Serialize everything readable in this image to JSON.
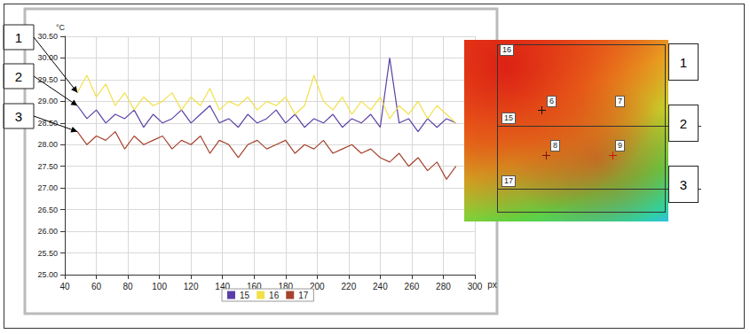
{
  "chart_data": {
    "type": "line",
    "x_label": "px",
    "y_label": "°C",
    "x": [
      48,
      54,
      60,
      66,
      72,
      78,
      84,
      90,
      96,
      102,
      108,
      114,
      120,
      126,
      132,
      138,
      144,
      150,
      156,
      162,
      168,
      174,
      180,
      186,
      192,
      198,
      204,
      210,
      216,
      222,
      228,
      234,
      240,
      246,
      252,
      258,
      264,
      270,
      276,
      282,
      288
    ],
    "series": [
      {
        "name": "15",
        "color": "#5b3fa6",
        "values": [
          28.9,
          28.6,
          28.8,
          28.5,
          28.7,
          28.6,
          28.8,
          28.4,
          28.7,
          28.5,
          28.6,
          28.8,
          28.5,
          28.7,
          28.9,
          28.5,
          28.6,
          28.4,
          28.7,
          28.5,
          28.6,
          28.8,
          28.5,
          28.7,
          28.4,
          28.6,
          28.5,
          28.7,
          28.4,
          28.6,
          28.5,
          28.7,
          28.4,
          30.0,
          28.5,
          28.6,
          28.3,
          28.6,
          28.4,
          28.6,
          28.5
        ]
      },
      {
        "name": "16",
        "color": "#f2e04a",
        "values": [
          29.2,
          29.6,
          29.1,
          29.4,
          28.9,
          29.2,
          28.8,
          29.1,
          28.9,
          29.0,
          29.2,
          28.8,
          29.1,
          28.9,
          29.3,
          28.8,
          29.0,
          28.9,
          29.1,
          28.8,
          29.0,
          28.9,
          29.1,
          28.7,
          28.9,
          29.6,
          29.0,
          28.8,
          29.1,
          28.7,
          29.0,
          28.8,
          29.1,
          28.6,
          28.9,
          28.7,
          29.0,
          28.6,
          28.9,
          28.7,
          28.5
        ]
      },
      {
        "name": "17",
        "color": "#a5432e",
        "values": [
          28.3,
          28.0,
          28.2,
          28.1,
          28.3,
          27.9,
          28.2,
          28.0,
          28.1,
          28.2,
          27.9,
          28.1,
          28.0,
          28.2,
          27.8,
          28.1,
          28.0,
          27.7,
          28.0,
          28.1,
          27.9,
          28.0,
          28.1,
          27.8,
          28.0,
          27.9,
          28.1,
          27.8,
          27.9,
          28.0,
          27.8,
          27.9,
          27.7,
          27.6,
          27.8,
          27.5,
          27.7,
          27.4,
          27.6,
          27.2,
          27.5
        ]
      }
    ],
    "xlim": [
      40,
      300
    ],
    "xticks": [
      40,
      60,
      80,
      100,
      120,
      140,
      160,
      180,
      200,
      220,
      240,
      260,
      280,
      300
    ],
    "ylim": [
      25,
      30.5
    ],
    "yticks": [
      {
        "value": 25,
        "label": "25.00"
      },
      {
        "value": 25.5,
        "label": "25.50"
      },
      {
        "value": 26,
        "label": "26.00"
      },
      {
        "value": 26.5,
        "label": "26.50"
      },
      {
        "value": 27,
        "label": "27.00"
      },
      {
        "value": 27.5,
        "label": "27.50"
      },
      {
        "value": 28,
        "label": "28.00"
      },
      {
        "value": 28.5,
        "label": "28.50"
      },
      {
        "value": 29,
        "label": "29.00"
      },
      {
        "value": 29.5,
        "label": "29.50"
      },
      {
        "value": 30,
        "label": "30.00"
      },
      {
        "value": 30.5,
        "label": "30.50"
      }
    ],
    "grid": true,
    "legend": "bottom",
    "marker": "none",
    "annotations": [
      {
        "text": "1",
        "series": "16"
      },
      {
        "text": "2",
        "series": "15"
      },
      {
        "text": "3",
        "series": "17"
      }
    ]
  },
  "thermal_image": {
    "labels": [
      "16",
      "6",
      "7",
      "15",
      "8",
      "9",
      "17"
    ],
    "zones": [
      "1",
      "2",
      "3"
    ]
  }
}
